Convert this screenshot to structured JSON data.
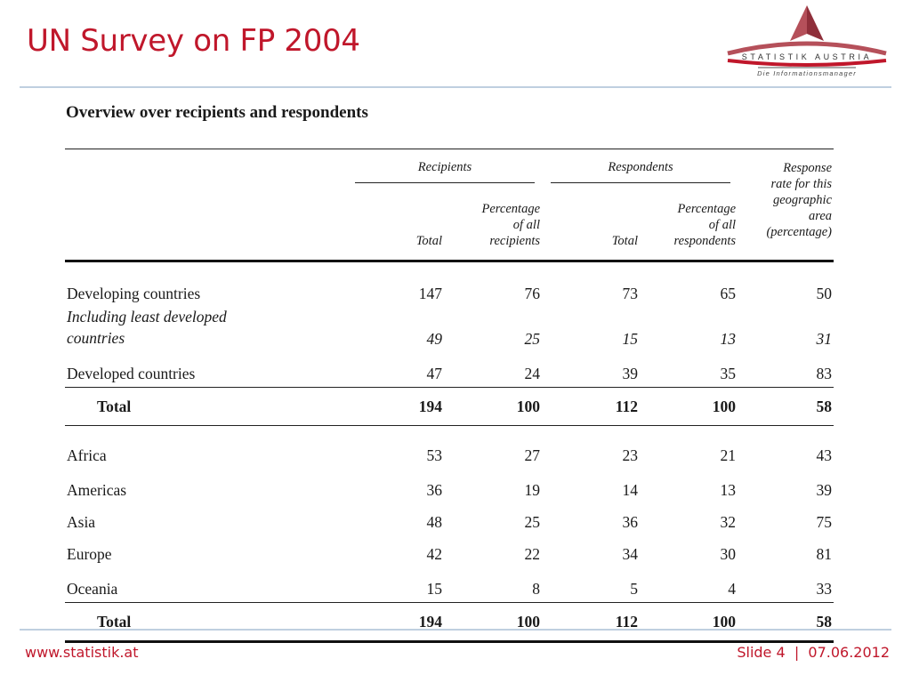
{
  "slide": {
    "title": "UN Survey on FP 2004",
    "logo": {
      "brand": "STATISTIK AUSTRIA",
      "tagline": "Die Informationsmanager"
    },
    "footer": {
      "url": "www.statistik.at",
      "slide_info": "Slide 4  |  07.06.2012"
    },
    "colors": {
      "accent": "#c0172b",
      "rule": "#bfcfe0",
      "logo_triangle": "#b5505a"
    }
  },
  "table": {
    "title": "Overview over recipients and respondents",
    "group_headers": {
      "recipients": "Recipients",
      "respondents": "Respondents",
      "response_rate": [
        "Response",
        "rate for this",
        "geographic",
        "area",
        "(percentage)"
      ]
    },
    "sub_headers": {
      "recipients_total": "Total",
      "recipients_pct": [
        "Percentage",
        "of all",
        "recipients"
      ],
      "respondents_total": "Total",
      "respondents_pct": [
        "Percentage",
        "of all",
        "respondents"
      ]
    },
    "rows": [
      {
        "label": "Developing countries",
        "rec_total": "147",
        "rec_pct": "76",
        "resp_total": "73",
        "resp_pct": "65",
        "rate": "50"
      },
      {
        "label_lines": [
          "Including least developed",
          "countries"
        ],
        "rec_total": "49",
        "rec_pct": "25",
        "resp_total": "15",
        "resp_pct": "13",
        "rate": "31"
      },
      {
        "label": "Developed countries",
        "rec_total": "47",
        "rec_pct": "24",
        "resp_total": "39",
        "resp_pct": "35",
        "rate": "83"
      },
      {
        "label": "Total",
        "rec_total": "194",
        "rec_pct": "100",
        "resp_total": "112",
        "resp_pct": "100",
        "rate": "58"
      },
      {
        "label": "Africa",
        "rec_total": "53",
        "rec_pct": "27",
        "resp_total": "23",
        "resp_pct": "21",
        "rate": "43"
      },
      {
        "label": "Americas",
        "rec_total": "36",
        "rec_pct": "19",
        "resp_total": "14",
        "resp_pct": "13",
        "rate": "39"
      },
      {
        "label": "Asia",
        "rec_total": "48",
        "rec_pct": "25",
        "resp_total": "36",
        "resp_pct": "32",
        "rate": "75"
      },
      {
        "label": "Europe",
        "rec_total": "42",
        "rec_pct": "22",
        "resp_total": "34",
        "resp_pct": "30",
        "rate": "81"
      },
      {
        "label": "Oceania",
        "rec_total": "15",
        "rec_pct": "8",
        "resp_total": "5",
        "resp_pct": "4",
        "rate": "33"
      },
      {
        "label": "Total",
        "rec_total": "194",
        "rec_pct": "100",
        "resp_total": "112",
        "resp_pct": "100",
        "rate": "58"
      }
    ]
  }
}
